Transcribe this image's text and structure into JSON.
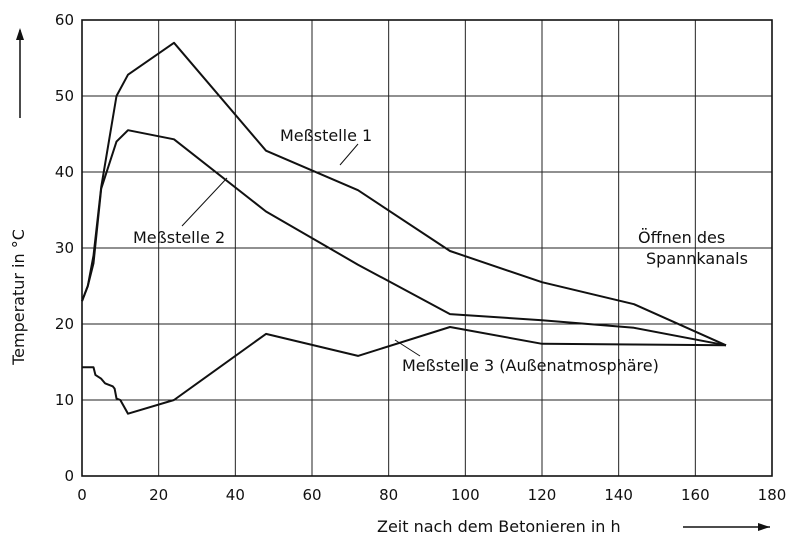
{
  "chart_data": {
    "type": "line",
    "xlabel": "Zeit nach dem Betonieren in  h",
    "ylabel": "Temperatur in  °C",
    "xlim": [
      0,
      180
    ],
    "ylim": [
      0,
      60
    ],
    "xticks": [
      0,
      20,
      40,
      60,
      80,
      100,
      120,
      140,
      160,
      180
    ],
    "yticks": [
      0,
      10,
      20,
      30,
      40,
      50,
      60
    ],
    "grid": true,
    "series": [
      {
        "name": "Meßstelle 1",
        "x": [
          0,
          1.5,
          3,
          5,
          9,
          12,
          24,
          48,
          72,
          96,
          120,
          144,
          168
        ],
        "y": [
          23,
          25,
          29,
          38,
          50,
          52.8,
          57,
          42.8,
          37.6,
          29.6,
          25.5,
          22.6,
          17.2
        ]
      },
      {
        "name": "Meßstelle 2",
        "x": [
          0,
          1.5,
          3,
          5,
          9,
          12,
          24,
          48,
          72,
          96,
          120,
          144,
          168
        ],
        "y": [
          23,
          25,
          28,
          37.8,
          44,
          45.5,
          44.3,
          34.8,
          27.8,
          21.3,
          20.5,
          19.5,
          17.2
        ]
      },
      {
        "name": "Meßstelle 3 (Außenatmosphäre)",
        "x": [
          0,
          3,
          3.5,
          5,
          6,
          7,
          8,
          8.5,
          9,
          10,
          12,
          24,
          48,
          72,
          96,
          120,
          144,
          168
        ],
        "y": [
          14.3,
          14.3,
          13.3,
          12.8,
          12.2,
          12.0,
          11.8,
          11.5,
          10.2,
          10.0,
          8.2,
          10.0,
          18.7,
          15.8,
          19.6,
          17.4,
          17.3,
          17.2
        ]
      }
    ],
    "annotations": {
      "m1": "Meßstelle 1",
      "m2": "Meßstelle 2",
      "m3": "Meßstelle 3 (Außenatmosphäre)",
      "open_line1": "Öffnen des",
      "open_line2": "Spannkanals"
    }
  }
}
